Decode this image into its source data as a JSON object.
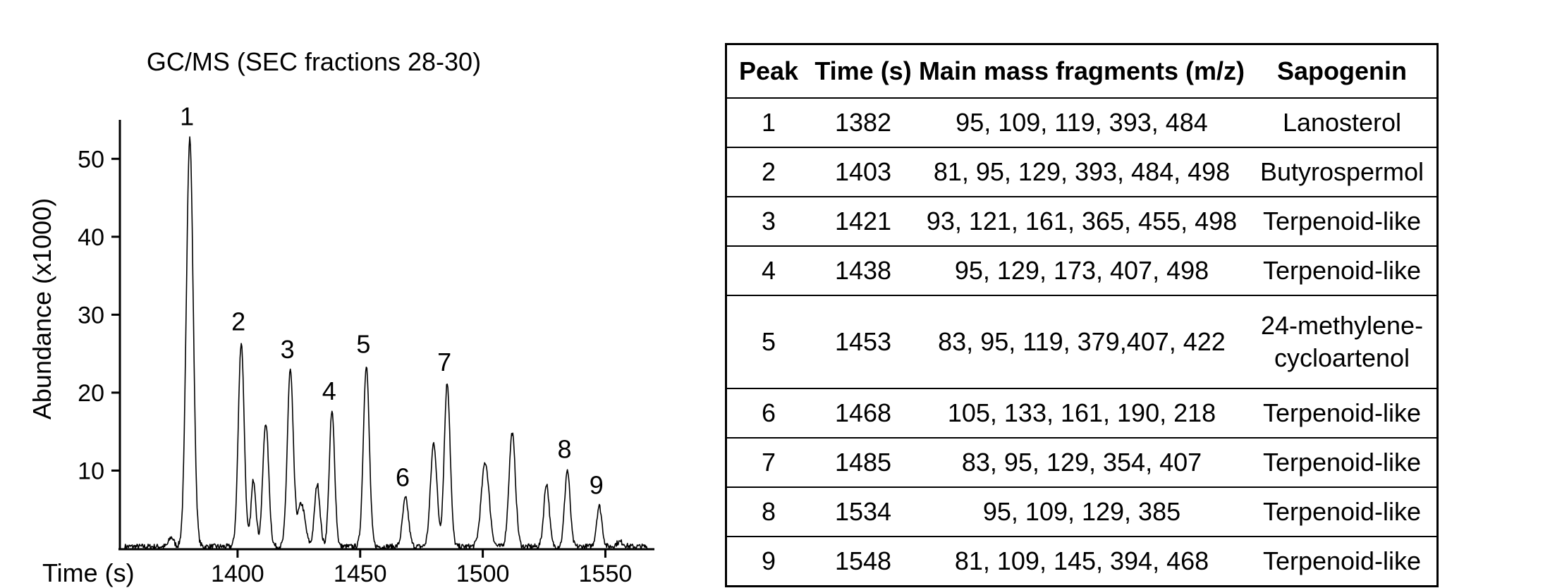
{
  "chart_data": {
    "type": "line",
    "title": "GC/MS (SEC fractions 28-30)",
    "xlabel": "Time (s)",
    "ylabel": "Abundance (x1000)",
    "xlim": [
      1352,
      1570
    ],
    "ylim": [
      0,
      55
    ],
    "x_ticks": [
      1400,
      1450,
      1500,
      1550
    ],
    "x_tick_labels": [
      "1400",
      "1450",
      "1500",
      "1550"
    ],
    "y_ticks": [
      10,
      20,
      30,
      40,
      50
    ],
    "y_tick_labels": [
      "10",
      "20",
      "30",
      "40",
      "50"
    ],
    "grid": false,
    "peaks": [
      {
        "label": "1",
        "x": 1380.5,
        "y": 52.5,
        "width": 1.4
      },
      {
        "label": "2",
        "x": 1401.5,
        "y": 26.2,
        "width": 1.2
      },
      {
        "label": "3",
        "x": 1421.5,
        "y": 22.6,
        "width": 1.2
      },
      {
        "label": "4",
        "x": 1438.5,
        "y": 17.3,
        "width": 1.1
      },
      {
        "label": "5",
        "x": 1452.5,
        "y": 23.3,
        "width": 1.2
      },
      {
        "label": "6",
        "x": 1468.5,
        "y": 6.2,
        "width": 1.2
      },
      {
        "label": "7",
        "x": 1485.5,
        "y": 21.0,
        "width": 1.2
      },
      {
        "label": "8",
        "x": 1534.5,
        "y": 9.8,
        "width": 1.1
      },
      {
        "label": "9",
        "x": 1547.5,
        "y": 5.2,
        "width": 1.1
      }
    ],
    "minor_peaks": [
      {
        "x": 1373.0,
        "y": 1.2,
        "width": 1.0
      },
      {
        "x": 1406.5,
        "y": 8.6,
        "width": 1.0
      },
      {
        "x": 1411.5,
        "y": 15.9,
        "width": 1.2
      },
      {
        "x": 1426.0,
        "y": 5.5,
        "width": 1.5
      },
      {
        "x": 1432.5,
        "y": 8.0,
        "width": 1.1
      },
      {
        "x": 1480.0,
        "y": 13.3,
        "width": 1.3
      },
      {
        "x": 1501.0,
        "y": 10.8,
        "width": 1.6
      },
      {
        "x": 1512.0,
        "y": 14.6,
        "width": 1.3
      },
      {
        "x": 1526.0,
        "y": 8.1,
        "width": 1.1
      },
      {
        "x": 1556.0,
        "y": 0.6,
        "width": 1.5
      }
    ]
  },
  "table": {
    "headers": [
      "Peak",
      "Time (s)",
      "Main mass fragments (m/z)",
      "Sapogenin"
    ],
    "rows": [
      {
        "peak": "1",
        "time": "1382",
        "fragments": "95, 109, 119, 393, 484",
        "sapogenin": [
          "Lanosterol"
        ]
      },
      {
        "peak": "2",
        "time": "1403",
        "fragments": "81, 95, 129, 393, 484, 498",
        "sapogenin": [
          "Butyrospermol"
        ]
      },
      {
        "peak": "3",
        "time": "1421",
        "fragments": "93, 121, 161, 365, 455, 498",
        "sapogenin": [
          "Terpenoid-like"
        ]
      },
      {
        "peak": "4",
        "time": "1438",
        "fragments": "95, 129, 173, 407, 498",
        "sapogenin": [
          "Terpenoid-like"
        ]
      },
      {
        "peak": "5",
        "time": "1453",
        "fragments": "83, 95, 119, 379,407, 422",
        "sapogenin": [
          "24-methylene-",
          "cycloartenol"
        ]
      },
      {
        "peak": "6",
        "time": "1468",
        "fragments": "105, 133, 161, 190, 218",
        "sapogenin": [
          "Terpenoid-like"
        ]
      },
      {
        "peak": "7",
        "time": "1485",
        "fragments": "83, 95, 129, 354, 407",
        "sapogenin": [
          "Terpenoid-like"
        ]
      },
      {
        "peak": "8",
        "time": "1534",
        "fragments": "95, 109, 129, 385",
        "sapogenin": [
          "Terpenoid-like"
        ]
      },
      {
        "peak": "9",
        "time": "1548",
        "fragments": "81, 109, 145, 394, 468",
        "sapogenin": [
          "Terpenoid-like"
        ]
      }
    ]
  }
}
